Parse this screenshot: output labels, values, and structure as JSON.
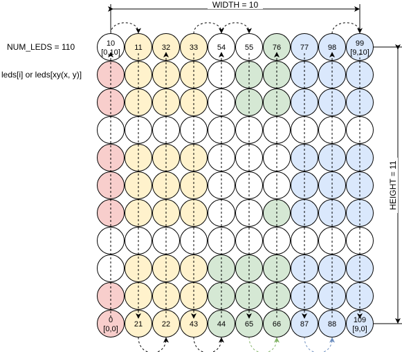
{
  "labels": {
    "width": "WIDTH = 10",
    "height": "HEIGHT = 11",
    "num_leds": "NUM_LEDS = 110",
    "access": "leds[i] or leds[xy(x, y)]"
  },
  "colors": {
    "red": "#f8cecc",
    "yellow": "#fff2cc",
    "green": "#d5e8d4",
    "blue": "#dae8fc",
    "white": "#ffffff",
    "green_arrow": "#82b366",
    "blue_arrow": "#6c8ebf"
  },
  "grid": {
    "columns": 10,
    "rows": 11,
    "column_colors": [
      [
        "white",
        "red",
        "red",
        "white",
        "red",
        "red",
        "red",
        "white",
        "white",
        "red",
        "red"
      ],
      [
        "yellow",
        "yellow",
        "yellow",
        "white",
        "yellow",
        "yellow",
        "yellow",
        "white",
        "yellow",
        "yellow",
        "yellow"
      ],
      [
        "yellow",
        "yellow",
        "yellow",
        "white",
        "yellow",
        "yellow",
        "yellow",
        "white",
        "yellow",
        "yellow",
        "yellow"
      ],
      [
        "yellow",
        "yellow",
        "yellow",
        "white",
        "yellow",
        "yellow",
        "yellow",
        "white",
        "yellow",
        "yellow",
        "yellow"
      ],
      [
        "white",
        "white",
        "white",
        "white",
        "white",
        "white",
        "white",
        "white",
        "green",
        "green",
        "green"
      ],
      [
        "white",
        "green",
        "green",
        "white",
        "white",
        "white",
        "white",
        "white",
        "green",
        "green",
        "green"
      ],
      [
        "green",
        "green",
        "green",
        "white",
        "white",
        "white",
        "green",
        "white",
        "green",
        "green",
        "green"
      ],
      [
        "blue",
        "blue",
        "blue",
        "white",
        "blue",
        "blue",
        "blue",
        "white",
        "blue",
        "blue",
        "blue"
      ],
      [
        "blue",
        "blue",
        "blue",
        "white",
        "blue",
        "blue",
        "blue",
        "white",
        "blue",
        "blue",
        "blue"
      ],
      [
        "blue",
        "blue",
        "blue",
        "white",
        "blue",
        "blue",
        "blue",
        "white",
        "blue",
        "blue",
        "blue"
      ]
    ],
    "top_labels": [
      {
        "col": 0,
        "text": "10",
        "sub": "[0,10]"
      },
      {
        "col": 1,
        "text": "11"
      },
      {
        "col": 2,
        "text": "32"
      },
      {
        "col": 3,
        "text": "33"
      },
      {
        "col": 4,
        "text": "54"
      },
      {
        "col": 5,
        "text": "55"
      },
      {
        "col": 6,
        "text": "76"
      },
      {
        "col": 7,
        "text": "77"
      },
      {
        "col": 8,
        "text": "98"
      },
      {
        "col": 9,
        "text": "99",
        "sub": "[9,10]"
      }
    ],
    "bottom_labels": [
      {
        "col": 0,
        "text": "0",
        "sub": "[0,0]"
      },
      {
        "col": 1,
        "text": "21"
      },
      {
        "col": 2,
        "text": "22"
      },
      {
        "col": 3,
        "text": "43"
      },
      {
        "col": 4,
        "text": "44"
      },
      {
        "col": 5,
        "text": "65"
      },
      {
        "col": 6,
        "text": "66"
      },
      {
        "col": 7,
        "text": "87"
      },
      {
        "col": 8,
        "text": "88"
      },
      {
        "col": 9,
        "text": "109",
        "sub": "[9,0]"
      }
    ],
    "column_direction": [
      "up",
      "down",
      "up",
      "down",
      "up",
      "down",
      "up",
      "down",
      "up",
      "down"
    ],
    "top_connectors": [
      [
        0,
        1
      ],
      [
        3,
        4
      ],
      [
        4,
        5
      ],
      [
        8,
        9
      ]
    ],
    "bottom_connectors": [
      {
        "from": 1,
        "to": 2,
        "color": "black"
      },
      {
        "from": 3,
        "to": 4,
        "color": "black"
      },
      {
        "from": 5,
        "to": 6,
        "color": "green_arrow"
      },
      {
        "from": 7,
        "to": 8,
        "color": "blue_arrow"
      }
    ]
  }
}
